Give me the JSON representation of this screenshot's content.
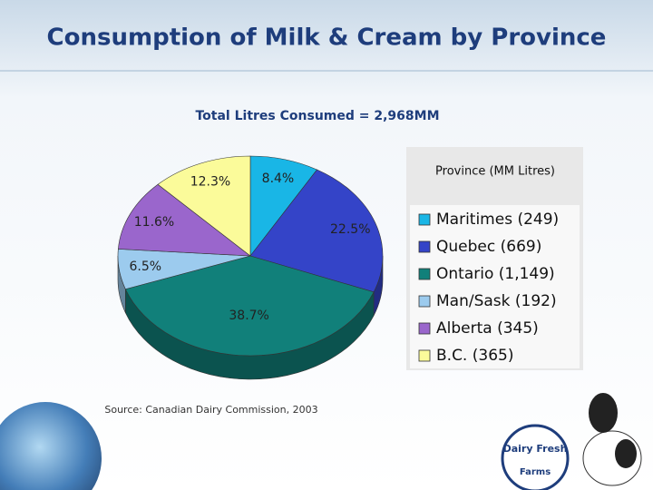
{
  "chart_data": {
    "type": "pie",
    "title": "Consumption of Milk & Cream by Province",
    "subtitle": "Total Litres Consumed = 2,968MM",
    "legend_title": "Province (MM Litres)",
    "categories": [
      "Maritimes (249)",
      "Quebec (669)",
      "Ontario (1,149)",
      "Man/Sask (192)",
      "Alberta (345)",
      "B.C. (365)"
    ],
    "values": [
      8.4,
      22.5,
      38.7,
      6.5,
      11.6,
      12.3
    ],
    "value_labels": [
      "8.4%",
      "22.5%",
      "38.7%",
      "6.5%",
      "11.6%",
      "12.3%"
    ],
    "colors": [
      "#19b6e6",
      "#3444c8",
      "#11807a",
      "#9ccbee",
      "#9a66cc",
      "#fbfb9a"
    ],
    "source": "Source: Canadian Dairy Commission, 2003"
  },
  "logo": {
    "line1": "Dairy Fresh",
    "line2": "Farms"
  }
}
